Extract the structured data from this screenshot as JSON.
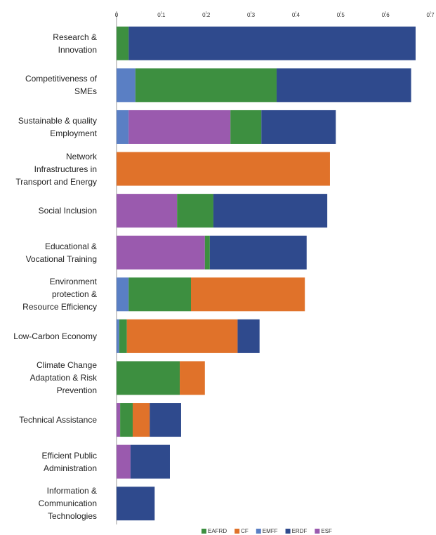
{
  "chart_data": {
    "type": "stacked_barh",
    "categories": [
      "Research &\nInnovation",
      "Competitiveness of\nSMEs",
      "Sustainable & quality\nEmployment",
      "Network\nInfrastructures in\nTransport and Energy",
      "Social Inclusion",
      "Educational &\nVocational Training",
      "Environment\nprotection &\nResource Efficiency",
      "Low-Carbon Economy",
      "Climate Change\nAdaptation & Risk\nPrevention",
      "Technical Assistance",
      "Efficient Public\nAdministration",
      "Information &\nCommunication\nTechnologies"
    ],
    "series": [
      {
        "name": "EAFRD",
        "color": "#3d8f40",
        "values": [
          0.027,
          0.315,
          0.069,
          null,
          0.081,
          0.011,
          0.139,
          0.017,
          0.141,
          0.028,
          null,
          null
        ]
      },
      {
        "name": "CF",
        "color": "#e0722a",
        "values": [
          null,
          null,
          null,
          0.476,
          null,
          null,
          0.254,
          0.247,
          0.056,
          0.038,
          null,
          null
        ]
      },
      {
        "name": "EMFF",
        "color": "#5a7fc4",
        "values": [
          null,
          0.042,
          0.027,
          null,
          null,
          null,
          0.027,
          0.006,
          null,
          null,
          null,
          null
        ]
      },
      {
        "name": "ERDF",
        "color": "#2f4a8d",
        "values": [
          0.64,
          0.3,
          0.166,
          null,
          0.254,
          0.216,
          null,
          0.049,
          null,
          0.07,
          0.088,
          0.085
        ]
      },
      {
        "name": "ESF",
        "color": "#9a5aae",
        "values": [
          null,
          null,
          0.227,
          null,
          0.135,
          0.197,
          null,
          null,
          null,
          0.008,
          0.031,
          null
        ]
      }
    ],
    "stack_order": [
      2,
      4,
      0,
      1,
      3
    ],
    "xlim": [
      0,
      0.7
    ],
    "xticks": [
      0,
      0.1,
      0.2,
      0.3,
      0.4,
      0.5,
      0.6,
      0.7
    ]
  }
}
